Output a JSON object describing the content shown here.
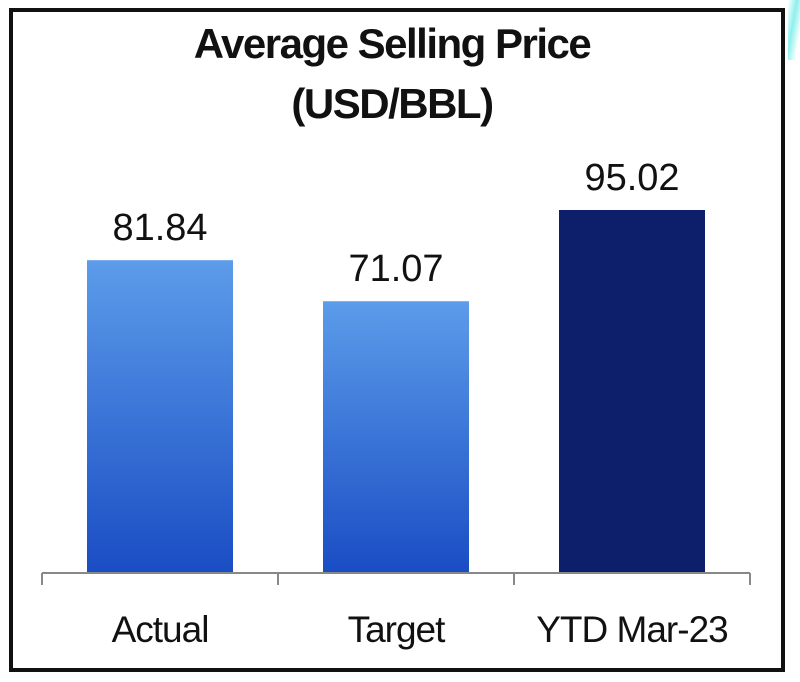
{
  "chart_data": {
    "type": "bar",
    "title": "Average Selling Price",
    "subtitle": "(USD/BBL)",
    "categories": [
      "Actual",
      "Target",
      "YTD Mar-23"
    ],
    "values": [
      81.84,
      71.07,
      95.02
    ],
    "value_labels": [
      "81.84",
      "71.07",
      "95.02"
    ],
    "colors": [
      "#3f7fe0",
      "#3f7fe0",
      "#0d1f6b"
    ],
    "xlabel": "",
    "ylabel": "",
    "ylim": [
      0,
      95.02
    ],
    "grid": false
  }
}
